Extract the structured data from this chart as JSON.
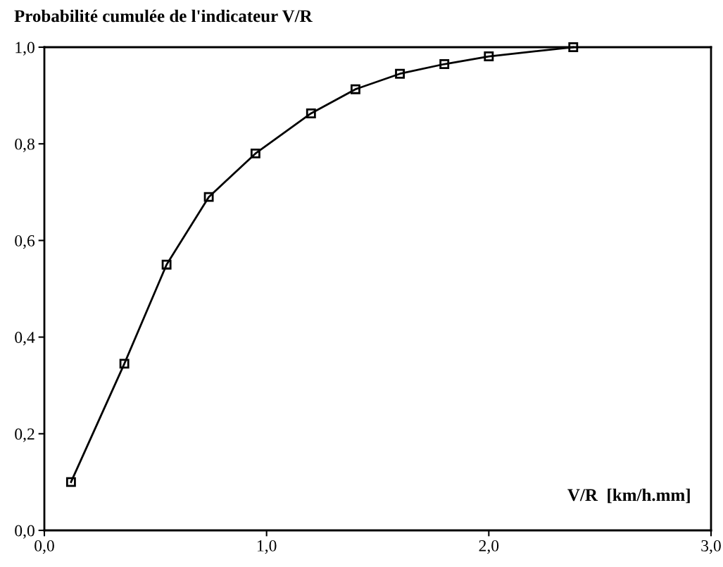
{
  "chart_data": {
    "type": "line",
    "title": "Probabilité cumulée de l'indicateur V/R",
    "xlabel": "V/R  [km/h.mm]",
    "x": [
      0.12,
      0.36,
      0.55,
      0.74,
      0.95,
      1.2,
      1.4,
      1.6,
      1.8,
      2.0,
      2.38
    ],
    "series": [
      {
        "color": "#000000",
        "values": [
          0.1,
          0.345,
          0.55,
          0.69,
          0.78,
          0.863,
          0.913,
          0.945,
          0.965,
          0.981,
          1.0
        ]
      }
    ],
    "xlim": [
      0,
      3
    ],
    "ylim": [
      0,
      1
    ],
    "xticks": [
      {
        "value": 0,
        "label": "0,0"
      },
      {
        "value": 1,
        "label": "1,0"
      },
      {
        "value": 2,
        "label": "2,0"
      },
      {
        "value": 3,
        "label": "3,0"
      }
    ],
    "yticks": [
      {
        "value": 0,
        "label": "0,0"
      },
      {
        "value": 0.2,
        "label": "0,2"
      },
      {
        "value": 0.4,
        "label": "0,4"
      },
      {
        "value": 0.6,
        "label": "0,6"
      },
      {
        "value": 0.8,
        "label": "0,8"
      },
      {
        "value": 1,
        "label": "1,0"
      }
    ],
    "marker": "square",
    "line_style": "solid",
    "grid": false,
    "legend": false
  }
}
